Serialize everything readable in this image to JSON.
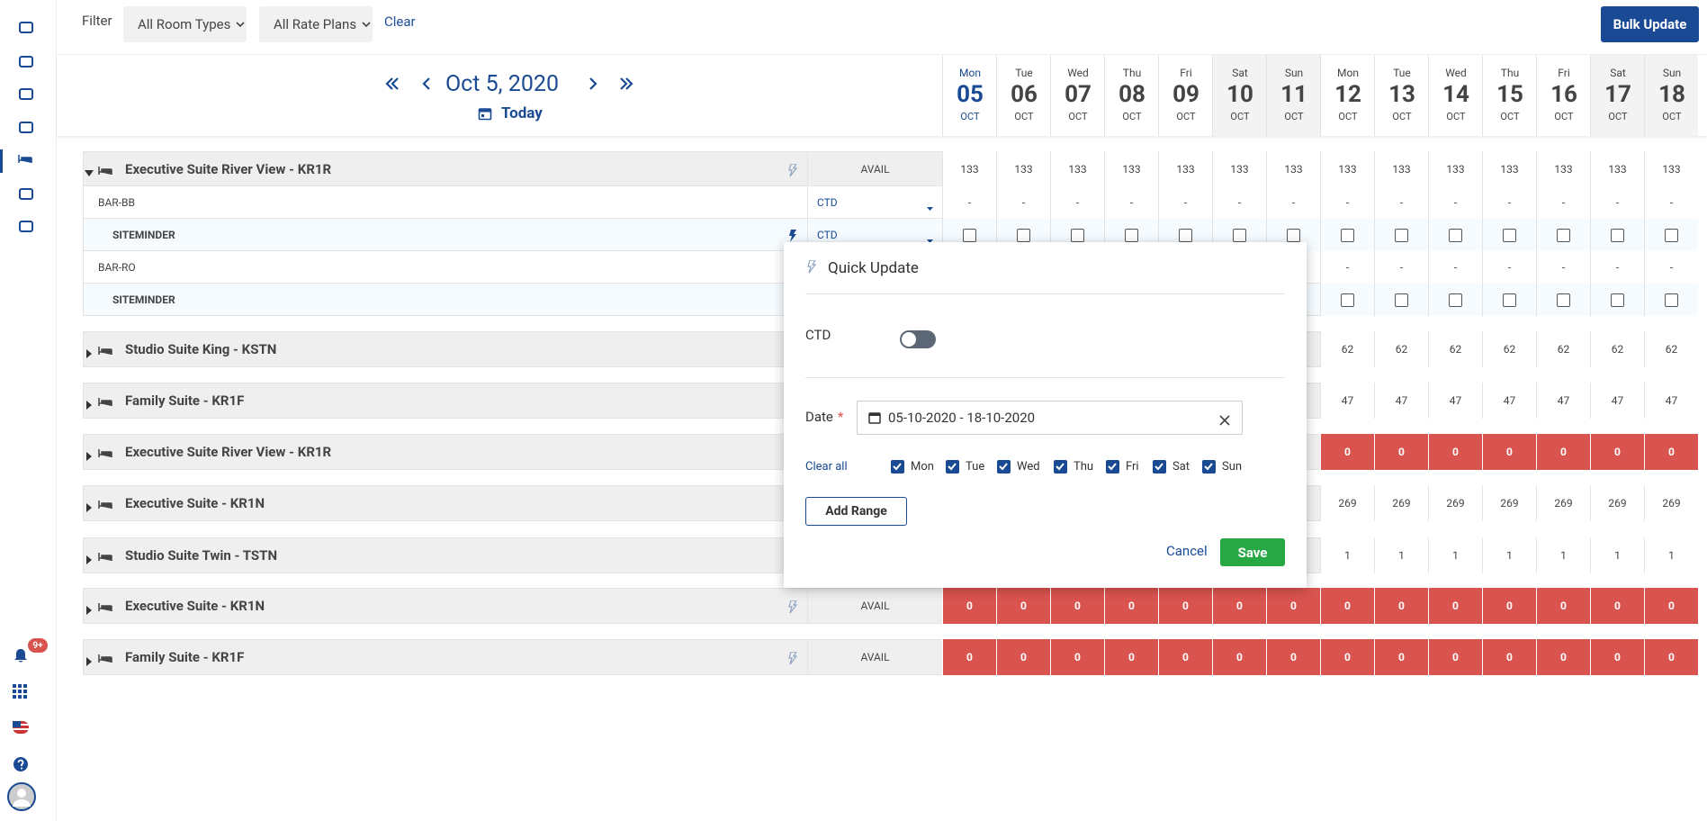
{
  "filter": {
    "label": "Filter",
    "room_types": "All Room Types",
    "rate_plans": "All Rate Plans",
    "clear": "Clear",
    "bulk_update": "Bulk Update"
  },
  "nav": {
    "date": "Oct 5, 2020",
    "today": "Today"
  },
  "sidebar": {
    "badge": "9+"
  },
  "days": [
    {
      "dow": "Mon",
      "day": "05",
      "month": "OCT",
      "today": true
    },
    {
      "dow": "Tue",
      "day": "06",
      "month": "OCT"
    },
    {
      "dow": "Wed",
      "day": "07",
      "month": "OCT"
    },
    {
      "dow": "Thu",
      "day": "08",
      "month": "OCT"
    },
    {
      "dow": "Fri",
      "day": "09",
      "month": "OCT"
    },
    {
      "dow": "Sat",
      "day": "10",
      "month": "OCT",
      "weekend": true
    },
    {
      "dow": "Sun",
      "day": "11",
      "month": "OCT",
      "weekend": true
    },
    {
      "dow": "Mon",
      "day": "12",
      "month": "OCT"
    },
    {
      "dow": "Tue",
      "day": "13",
      "month": "OCT"
    },
    {
      "dow": "Wed",
      "day": "14",
      "month": "OCT"
    },
    {
      "dow": "Thu",
      "day": "15",
      "month": "OCT"
    },
    {
      "dow": "Fri",
      "day": "16",
      "month": "OCT"
    },
    {
      "dow": "Sat",
      "day": "17",
      "month": "OCT",
      "weekend": true
    },
    {
      "dow": "Sun",
      "day": "18",
      "month": "OCT",
      "weekend": true
    }
  ],
  "zero_color": "#d9534f",
  "rows": [
    {
      "name": "Executive Suite River View - KR1R",
      "expanded": true,
      "quick_update": true,
      "label": "AVAIL",
      "values": [
        133,
        133,
        133,
        133,
        133,
        133,
        133,
        133,
        133,
        133,
        133,
        133,
        133,
        133
      ],
      "rate_plans": [
        {
          "name": "BAR-BB",
          "restriction": "CTD",
          "values": [
            "-",
            "-",
            "-",
            "-",
            "-",
            "-",
            "-",
            "-",
            "-",
            "-",
            "-",
            "-",
            "-",
            "-"
          ]
        },
        {
          "name": "SITEMINDER",
          "channel": true,
          "quick_update": true,
          "restriction": "CTD",
          "checked": [
            false,
            false,
            false,
            false,
            false,
            false,
            false,
            false,
            false,
            false,
            false,
            false,
            false,
            false
          ]
        },
        {
          "name": "BAR-RO",
          "values": [
            null,
            null,
            null,
            null,
            null,
            null,
            null,
            "-",
            "-",
            "-",
            "-",
            "-",
            "-",
            "-"
          ]
        },
        {
          "name": "SITEMINDER",
          "channel": true,
          "checked": [
            null,
            null,
            null,
            null,
            null,
            null,
            null,
            false,
            false,
            false,
            false,
            false,
            false,
            false
          ]
        }
      ]
    },
    {
      "name": "Studio Suite King - KSTN",
      "values": [
        null,
        null,
        null,
        null,
        null,
        null,
        null,
        62,
        62,
        62,
        62,
        62,
        62,
        62
      ]
    },
    {
      "name": "Family Suite - KR1F",
      "values": [
        null,
        null,
        null,
        null,
        null,
        null,
        null,
        47,
        47,
        47,
        47,
        47,
        47,
        47
      ]
    },
    {
      "name": "Executive Suite River View - KR1R",
      "values": [
        null,
        null,
        null,
        null,
        null,
        null,
        null,
        0,
        0,
        0,
        0,
        0,
        0,
        0
      ]
    },
    {
      "name": "Executive Suite - KR1N",
      "values": [
        null,
        null,
        null,
        null,
        null,
        null,
        null,
        269,
        269,
        269,
        269,
        269,
        269,
        269
      ]
    },
    {
      "name": "Studio Suite Twin - TSTN",
      "values": [
        null,
        null,
        null,
        null,
        null,
        null,
        null,
        1,
        1,
        1,
        1,
        1,
        1,
        1
      ]
    },
    {
      "name": "Executive Suite - KR1N",
      "quick_update": true,
      "label": "AVAIL",
      "values": [
        0,
        0,
        0,
        0,
        0,
        0,
        0,
        0,
        0,
        0,
        0,
        0,
        0,
        0
      ]
    },
    {
      "name": "Family Suite - KR1F",
      "quick_update": true,
      "label": "AVAIL",
      "values": [
        0,
        0,
        0,
        0,
        0,
        0,
        0,
        0,
        0,
        0,
        0,
        0,
        0,
        0
      ]
    }
  ],
  "modal": {
    "title": "Quick Update",
    "ctd_label": "CTD",
    "ctd_on": false,
    "date_label": "Date",
    "required": "*",
    "date_range": "05-10-2020 - 18-10-2020",
    "clear_all": "Clear all",
    "weekdays": [
      {
        "label": "Mon",
        "checked": true
      },
      {
        "label": "Tue",
        "checked": true
      },
      {
        "label": "Wed",
        "checked": true
      },
      {
        "label": "Thu",
        "checked": true
      },
      {
        "label": "Fri",
        "checked": true
      },
      {
        "label": "Sat",
        "checked": true
      },
      {
        "label": "Sun",
        "checked": true
      }
    ],
    "add_range": "Add Range",
    "cancel": "Cancel",
    "save": "Save"
  }
}
